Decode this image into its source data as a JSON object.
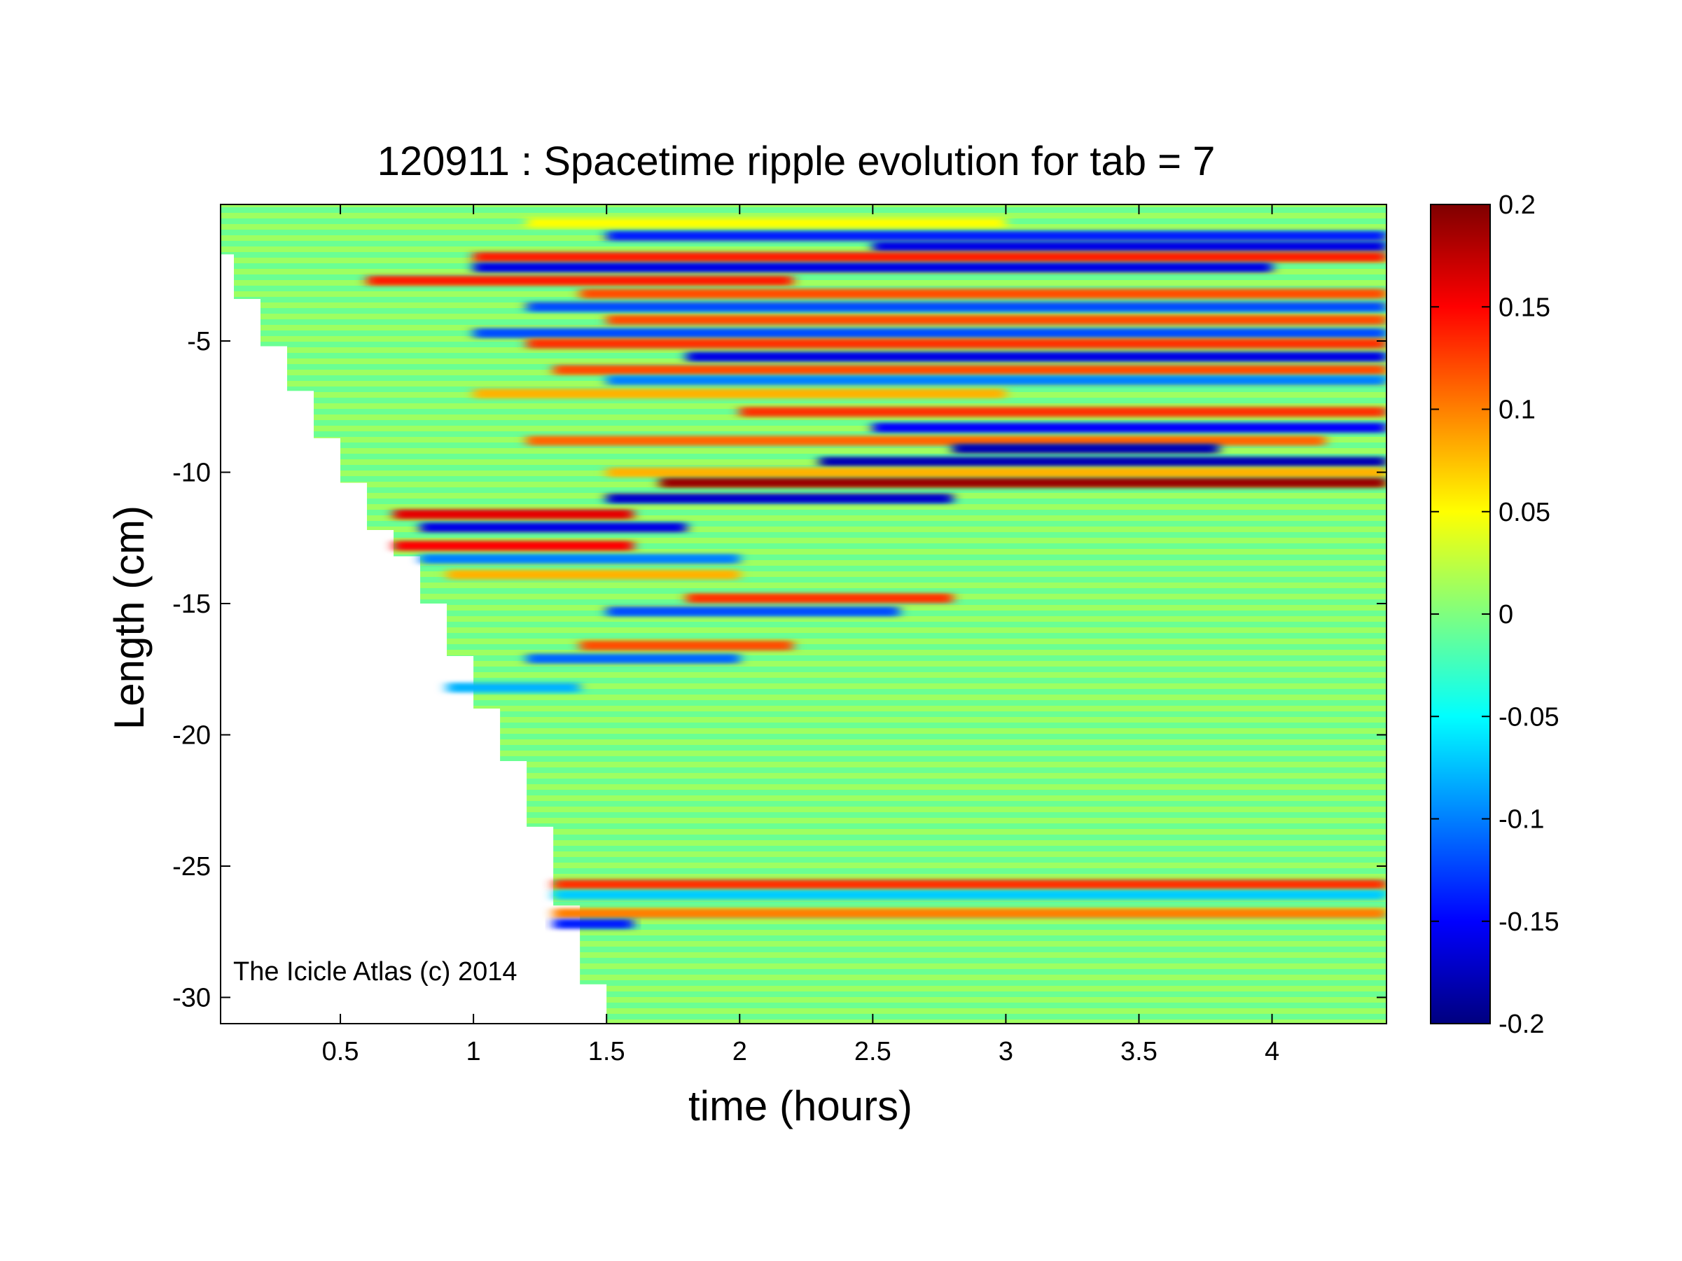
{
  "chart_data": {
    "type": "heatmap",
    "title": "120911 : Spacetime ripple evolution for tab = 7",
    "xlabel": "time (hours)",
    "ylabel": "Length (cm)",
    "xlim": [
      0.05,
      4.43
    ],
    "ylim": [
      -31,
      0.2
    ],
    "x_ticks": [
      0.5,
      1,
      1.5,
      2,
      2.5,
      3,
      3.5,
      4
    ],
    "y_ticks": [
      -5,
      -10,
      -15,
      -20,
      -25,
      -30
    ],
    "colorbar": {
      "colormap": "jet",
      "clim": [
        -0.2,
        0.2
      ],
      "ticks": [
        0.2,
        0.15,
        0.1,
        0.05,
        0,
        -0.05,
        -0.1,
        -0.15,
        -0.2
      ]
    },
    "data_front": {
      "description_points_x_hours": [
        0.05,
        0.1,
        0.2,
        0.3,
        0.4,
        0.5,
        0.6,
        0.7,
        0.8,
        0.9,
        1.0,
        1.1,
        1.2,
        1.3,
        1.4,
        1.5,
        1.6
      ],
      "description_points_y_cm": [
        -1.0,
        -1.7,
        -3.4,
        -5.2,
        -6.9,
        -8.7,
        -10.4,
        -12.2,
        -13.2,
        -15.0,
        -17.0,
        -19.0,
        -21.0,
        -23.5,
        -26.5,
        -29.5,
        -31.0
      ]
    },
    "bands": [
      {
        "y": -0.5,
        "x0": 1.2,
        "x1": 3.0,
        "value": 0.05
      },
      {
        "y": -1.0,
        "x0": 1.5,
        "x1": 4.43,
        "value": -0.14
      },
      {
        "y": -1.4,
        "x0": 2.5,
        "x1": 4.43,
        "value": -0.16
      },
      {
        "y": -1.8,
        "x0": 1.0,
        "x1": 4.43,
        "value": 0.14
      },
      {
        "y": -2.2,
        "x0": 1.0,
        "x1": 4.0,
        "value": -0.16
      },
      {
        "y": -2.7,
        "x0": 0.6,
        "x1": 2.2,
        "value": 0.14
      },
      {
        "y": -3.2,
        "x0": 1.4,
        "x1": 4.43,
        "value": 0.12
      },
      {
        "y": -3.7,
        "x0": 1.2,
        "x1": 4.43,
        "value": -0.12
      },
      {
        "y": -4.2,
        "x0": 1.5,
        "x1": 4.43,
        "value": 0.12
      },
      {
        "y": -4.7,
        "x0": 1.0,
        "x1": 4.43,
        "value": -0.12
      },
      {
        "y": -5.1,
        "x0": 1.2,
        "x1": 4.43,
        "value": 0.13
      },
      {
        "y": -5.6,
        "x0": 1.8,
        "x1": 4.43,
        "value": -0.16
      },
      {
        "y": -6.1,
        "x0": 1.3,
        "x1": 4.43,
        "value": 0.12
      },
      {
        "y": -6.5,
        "x0": 1.5,
        "x1": 4.43,
        "value": -0.1
      },
      {
        "y": -7.0,
        "x0": 1.0,
        "x1": 3.0,
        "value": 0.08
      },
      {
        "y": -7.7,
        "x0": 2.0,
        "x1": 4.43,
        "value": 0.13
      },
      {
        "y": -8.3,
        "x0": 2.5,
        "x1": 4.43,
        "value": -0.15
      },
      {
        "y": -8.8,
        "x0": 1.2,
        "x1": 4.2,
        "value": 0.11
      },
      {
        "y": -9.1,
        "x0": 2.8,
        "x1": 3.8,
        "value": -0.18
      },
      {
        "y": -9.6,
        "x0": 2.3,
        "x1": 4.43,
        "value": -0.18
      },
      {
        "y": -10.0,
        "x0": 1.5,
        "x1": 4.43,
        "value": 0.08
      },
      {
        "y": -10.4,
        "x0": 1.7,
        "x1": 4.43,
        "value": 0.19
      },
      {
        "y": -11.0,
        "x0": 1.5,
        "x1": 2.8,
        "value": -0.17
      },
      {
        "y": -11.6,
        "x0": 0.7,
        "x1": 1.6,
        "value": 0.16
      },
      {
        "y": -12.1,
        "x0": 0.8,
        "x1": 1.8,
        "value": -0.16
      },
      {
        "y": -12.8,
        "x0": 0.7,
        "x1": 1.6,
        "value": 0.15
      },
      {
        "y": -13.3,
        "x0": 0.8,
        "x1": 2.0,
        "value": -0.1
      },
      {
        "y": -13.9,
        "x0": 0.9,
        "x1": 2.0,
        "value": 0.08
      },
      {
        "y": -14.8,
        "x0": 1.8,
        "x1": 2.8,
        "value": 0.13
      },
      {
        "y": -15.3,
        "x0": 1.5,
        "x1": 2.6,
        "value": -0.12
      },
      {
        "y": -16.6,
        "x0": 1.4,
        "x1": 2.2,
        "value": 0.12
      },
      {
        "y": -17.1,
        "x0": 1.2,
        "x1": 2.0,
        "value": -0.11
      },
      {
        "y": -18.2,
        "x0": 0.9,
        "x1": 1.4,
        "value": -0.08
      },
      {
        "y": -25.7,
        "x0": 1.3,
        "x1": 4.43,
        "value": 0.13
      },
      {
        "y": -26.1,
        "x0": 1.3,
        "x1": 4.43,
        "value": -0.07
      },
      {
        "y": -26.8,
        "x0": 1.3,
        "x1": 4.43,
        "value": 0.1
      },
      {
        "y": -27.2,
        "x0": 1.3,
        "x1": 1.6,
        "value": -0.14
      }
    ]
  },
  "watermark": "The Icicle Atlas (c) 2014"
}
